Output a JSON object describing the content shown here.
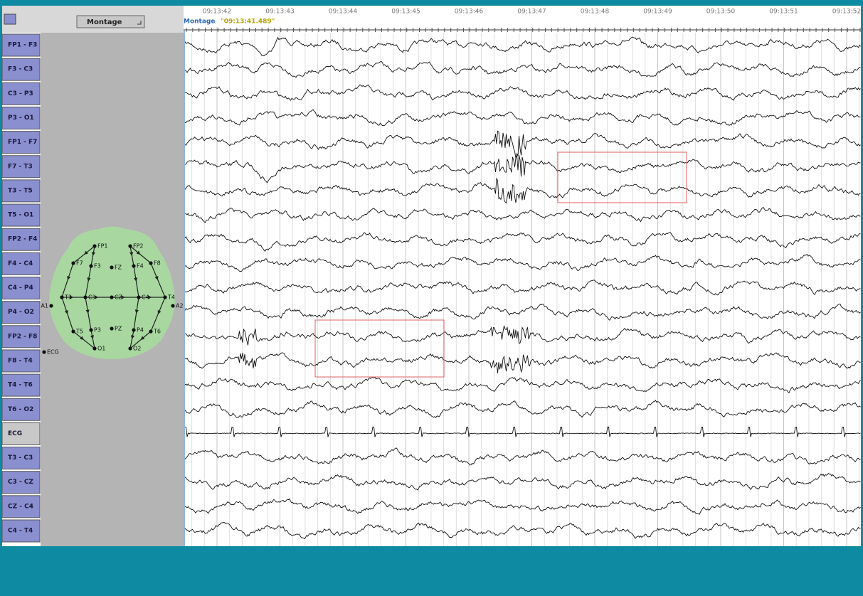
{
  "toolbar": {
    "montage_button": "Montage"
  },
  "timeline": {
    "overlay_label": "Montage",
    "timestamp": "\"09:13:41.489\"",
    "ticks": [
      "09:13:42",
      "09:13:43",
      "09:13:44",
      "09:13:45",
      "09:13:46",
      "09:13:47",
      "09:13:48",
      "09:13:49",
      "09:13:50",
      "09:13:51",
      "09:13:52"
    ]
  },
  "channels": [
    "FP1 - F3",
    "F3 - C3",
    "C3 - P3",
    "P3 - O1",
    "FP1 - F7",
    "F7 - T3",
    "T3 - T5",
    "T5 - O1",
    "FP2 - F4",
    "F4 - C4",
    "C4 - P4",
    "P4 - O2",
    "FP2 - F8",
    "F8 - T4",
    "T4 - T6",
    "T6 - O2",
    "ECG",
    "T3 - C3",
    "C3 - CZ",
    "CZ - C4",
    "C4 - T4"
  ],
  "head_map": {
    "electrodes": [
      "FP1",
      "FP2",
      "F7",
      "F3",
      "FZ",
      "F4",
      "F8",
      "T3",
      "C3",
      "CZ",
      "C4",
      "T4",
      "A1",
      "A2",
      "T5",
      "P3",
      "PZ",
      "P4",
      "T6",
      "O1",
      "O2",
      "ECG"
    ]
  }
}
